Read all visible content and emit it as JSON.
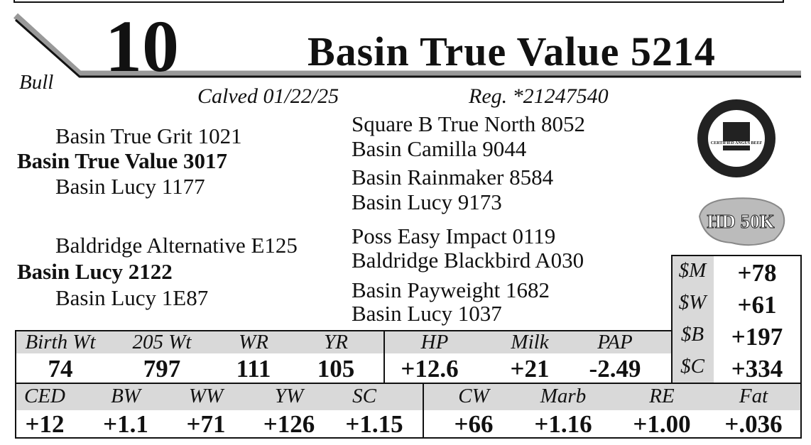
{
  "header": {
    "lot": "10",
    "sex": "Bull",
    "name": "Basin True Value 5214",
    "calved": "Calved 01/22/25",
    "registration": "Reg. *21247540"
  },
  "pedigree": {
    "sire": "Basin True Value 3017",
    "sire_sire": "Basin True Grit 1021",
    "sire_dam": "Basin Lucy 1177",
    "sire_sire_sire": "Square B True North 8052",
    "sire_sire_dam": "Basin Camilla 9044",
    "sire_dam_sire": "Basin Rainmaker 8584",
    "sire_dam_dam": "Basin Lucy 9173",
    "dam": "Basin Lucy 2122",
    "dam_sire": "Baldridge Alternative E125",
    "dam_dam": "Basin Lucy 1E87",
    "dam_sire_sire": "Poss Easy Impact 0119",
    "dam_sire_dam": "Baldridge Blackbird A030",
    "dam_dam_sire": "Basin Payweight 1682",
    "dam_dam_dam": "Basin Lucy 1037"
  },
  "badges": {
    "cab": "CERTIFIED ANGUS BEEF",
    "hd50k": "HD 50K"
  },
  "indexes": {
    "labels": [
      "$M",
      "$W",
      "$B",
      "$C"
    ],
    "values": [
      "+78",
      "+61",
      "+197",
      "+334"
    ]
  },
  "performance": {
    "headers": [
      "Birth Wt",
      "205 Wt",
      "WR",
      "YR",
      "HP",
      "Milk",
      "PAP"
    ],
    "values": [
      "74",
      "797",
      "111",
      "105",
      "+12.6",
      "+21",
      "-2.49"
    ]
  },
  "epds": {
    "headers": [
      "CED",
      "BW",
      "WW",
      "YW",
      "SC",
      "CW",
      "Marb",
      "RE",
      "Fat"
    ],
    "values": [
      "+12",
      "+1.1",
      "+71",
      "+126",
      "+1.15",
      "+66",
      "+1.16",
      "+1.00",
      "+.036"
    ]
  }
}
